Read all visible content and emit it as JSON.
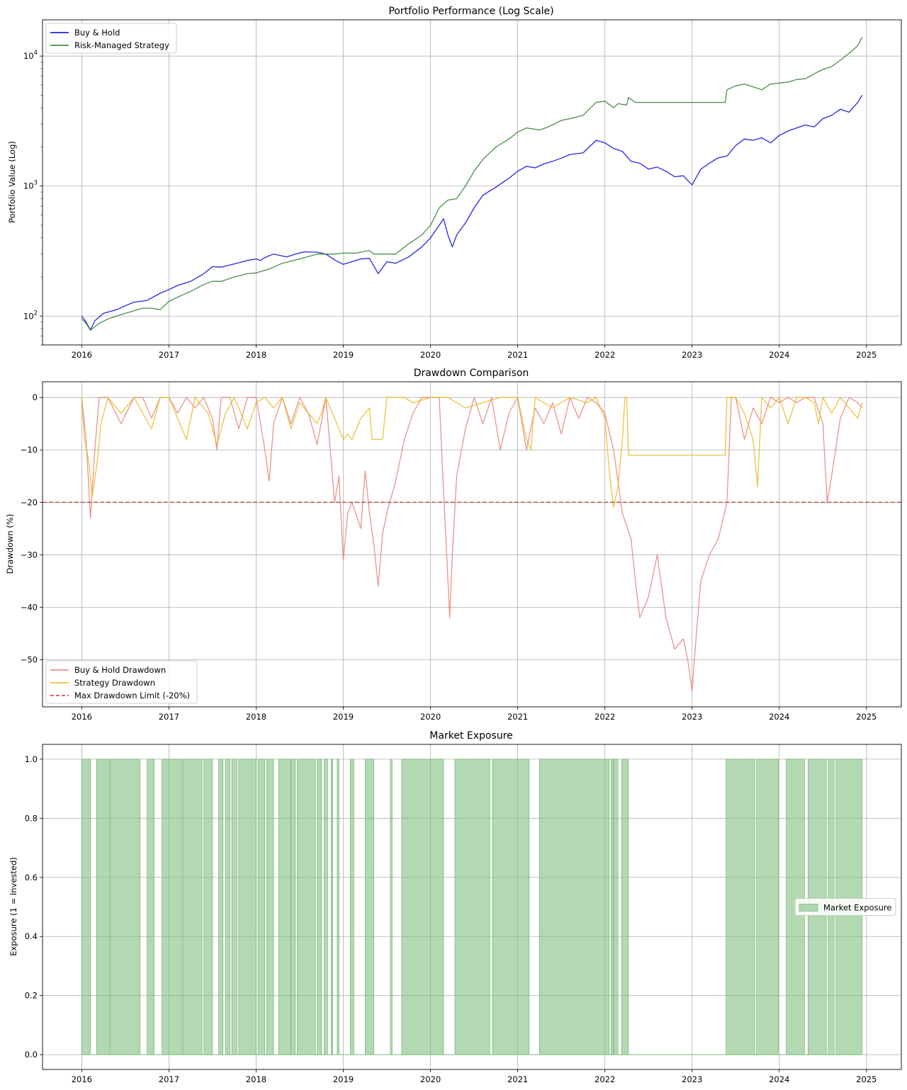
{
  "chart_data": [
    {
      "type": "line",
      "title": "Portfolio Performance (Log Scale)",
      "ylabel": "Portfolio Value (Log)",
      "xlabel": "",
      "yscale": "log",
      "xlim": [
        2015.55,
        2025.4
      ],
      "ylim": [
        60,
        19000
      ],
      "x_ticks": [
        "2016",
        "2017",
        "2018",
        "2019",
        "2020",
        "2021",
        "2022",
        "2023",
        "2024",
        "2025"
      ],
      "y_ticks": [
        "10^2",
        "10^3",
        "10^4"
      ],
      "grid": true,
      "legend_position": "upper-left",
      "series": [
        {
          "name": "Buy & Hold",
          "color": "#0000dd",
          "x": [
            2016.0,
            2016.05,
            2016.1,
            2016.15,
            2016.25,
            2016.4,
            2016.5,
            2016.6,
            2016.75,
            2016.9,
            2017.0,
            2017.1,
            2017.25,
            2017.4,
            2017.5,
            2017.6,
            2017.75,
            2017.9,
            2018.0,
            2018.05,
            2018.1,
            2018.2,
            2018.35,
            2018.45,
            2018.55,
            2018.7,
            2018.8,
            2018.9,
            2019.0,
            2019.1,
            2019.2,
            2019.3,
            2019.4,
            2019.5,
            2019.6,
            2019.75,
            2019.9,
            2020.0,
            2020.1,
            2020.15,
            2020.2,
            2020.25,
            2020.3,
            2020.4,
            2020.5,
            2020.6,
            2020.75,
            2020.9,
            2021.0,
            2021.1,
            2021.2,
            2021.3,
            2021.4,
            2021.5,
            2021.6,
            2021.75,
            2021.9,
            2022.0,
            2022.1,
            2022.2,
            2022.3,
            2022.4,
            2022.5,
            2022.6,
            2022.7,
            2022.8,
            2022.9,
            2023.0,
            2023.1,
            2023.2,
            2023.3,
            2023.4,
            2023.5,
            2023.6,
            2023.7,
            2023.8,
            2023.9,
            2024.0,
            2024.1,
            2024.2,
            2024.3,
            2024.4,
            2024.5,
            2024.6,
            2024.7,
            2024.8,
            2024.9,
            2024.95
          ],
          "y": [
            100,
            90,
            78,
            92,
            105,
            112,
            120,
            128,
            132,
            150,
            160,
            172,
            185,
            212,
            240,
            238,
            252,
            268,
            275,
            268,
            282,
            300,
            285,
            300,
            312,
            310,
            300,
            270,
            250,
            262,
            275,
            278,
            212,
            262,
            255,
            285,
            340,
            400,
            500,
            560,
            420,
            340,
            420,
            520,
            680,
            850,
            980,
            1150,
            1300,
            1420,
            1380,
            1480,
            1550,
            1640,
            1750,
            1800,
            2250,
            2150,
            1950,
            1850,
            1550,
            1500,
            1350,
            1400,
            1300,
            1180,
            1200,
            1020,
            1350,
            1500,
            1650,
            1700,
            2050,
            2300,
            2250,
            2350,
            2150,
            2450,
            2650,
            2800,
            2950,
            2850,
            3300,
            3500,
            3900,
            3700,
            4400,
            5000
          ]
        },
        {
          "name": "Risk-Managed Strategy",
          "color": "#2a7a2a",
          "x": [
            2016.0,
            2016.05,
            2016.1,
            2016.2,
            2016.3,
            2016.4,
            2016.5,
            2016.6,
            2016.7,
            2016.8,
            2016.9,
            2017.0,
            2017.1,
            2017.25,
            2017.4,
            2017.5,
            2017.6,
            2017.75,
            2017.9,
            2018.0,
            2018.15,
            2018.3,
            2018.5,
            2018.7,
            2018.9,
            2019.0,
            2019.15,
            2019.3,
            2019.35,
            2019.5,
            2019.6,
            2019.75,
            2019.9,
            2020.0,
            2020.1,
            2020.2,
            2020.3,
            2020.4,
            2020.5,
            2020.6,
            2020.75,
            2020.9,
            2021.0,
            2021.1,
            2021.25,
            2021.35,
            2021.5,
            2021.6,
            2021.75,
            2021.9,
            2022.0,
            2022.1,
            2022.15,
            2022.25,
            2022.27,
            2022.35,
            2023.0,
            2023.38,
            2023.4,
            2023.5,
            2023.6,
            2023.7,
            2023.8,
            2023.9,
            2024.0,
            2024.1,
            2024.2,
            2024.3,
            2024.4,
            2024.5,
            2024.6,
            2024.7,
            2024.8,
            2024.9,
            2024.95
          ],
          "y": [
            95,
            88,
            78,
            88,
            95,
            100,
            105,
            110,
            115,
            115,
            112,
            130,
            140,
            155,
            175,
            185,
            185,
            200,
            212,
            215,
            230,
            255,
            275,
            300,
            300,
            305,
            305,
            320,
            300,
            300,
            300,
            360,
            420,
            500,
            680,
            780,
            800,
            1000,
            1300,
            1600,
            2000,
            2300,
            2600,
            2800,
            2700,
            2850,
            3200,
            3300,
            3500,
            4400,
            4500,
            4000,
            4300,
            4200,
            4800,
            4400,
            4400,
            4400,
            5500,
            5900,
            6100,
            5800,
            5500,
            6100,
            6200,
            6300,
            6600,
            6700,
            7300,
            7900,
            8300,
            9300,
            10500,
            12000,
            14000
          ]
        }
      ]
    },
    {
      "type": "line",
      "title": "Drawdown Comparison",
      "ylabel": "Drawdown (%)",
      "xlabel": "",
      "xlim": [
        2015.55,
        2025.4
      ],
      "ylim": [
        -59,
        3
      ],
      "x_ticks": [
        "2016",
        "2017",
        "2018",
        "2019",
        "2020",
        "2021",
        "2022",
        "2023",
        "2024",
        "2025"
      ],
      "y_ticks": [
        "0",
        "−10",
        "−20",
        "−30",
        "−40",
        "−50"
      ],
      "grid": true,
      "legend_position": "lower-left",
      "series": [
        {
          "name": "Buy & Hold Drawdown",
          "color": "#e8807a",
          "x": [
            2016.0,
            2016.05,
            2016.1,
            2016.15,
            2016.2,
            2016.3,
            2016.45,
            2016.6,
            2016.7,
            2016.8,
            2016.9,
            2017.0,
            2017.1,
            2017.2,
            2017.3,
            2017.4,
            2017.5,
            2017.55,
            2017.6,
            2017.7,
            2017.8,
            2017.9,
            2018.0,
            2018.1,
            2018.15,
            2018.2,
            2018.3,
            2018.4,
            2018.5,
            2018.6,
            2018.7,
            2018.8,
            2018.85,
            2018.9,
            2018.95,
            2019.0,
            2019.05,
            2019.1,
            2019.2,
            2019.25,
            2019.3,
            2019.35,
            2019.4,
            2019.45,
            2019.5,
            2019.6,
            2019.7,
            2019.8,
            2019.9,
            2020.0,
            2020.1,
            2020.15,
            2020.2,
            2020.22,
            2020.25,
            2020.3,
            2020.4,
            2020.5,
            2020.6,
            2020.7,
            2020.8,
            2020.9,
            2021.0,
            2021.1,
            2021.2,
            2021.3,
            2021.4,
            2021.5,
            2021.6,
            2021.7,
            2021.8,
            2021.9,
            2022.0,
            2022.1,
            2022.2,
            2022.3,
            2022.35,
            2022.4,
            2022.5,
            2022.6,
            2022.7,
            2022.8,
            2022.9,
            2022.95,
            2023.0,
            2023.05,
            2023.1,
            2023.2,
            2023.3,
            2023.4,
            2023.45,
            2023.5,
            2023.6,
            2023.7,
            2023.8,
            2023.9,
            2024.0,
            2024.1,
            2024.2,
            2024.3,
            2024.4,
            2024.5,
            2024.55,
            2024.6,
            2024.7,
            2024.8,
            2024.9,
            2024.95
          ],
          "y": [
            0,
            -8,
            -23,
            -10,
            0,
            0,
            -5,
            0,
            0,
            -4,
            0,
            0,
            -3,
            0,
            -2,
            0,
            -4,
            -10,
            0,
            0,
            -6,
            0,
            0,
            -10,
            -16,
            -5,
            0,
            -5,
            0,
            -3,
            -9,
            0,
            -10,
            -20,
            -15,
            -31,
            -22,
            -20,
            -25,
            -14,
            -22,
            -28,
            -36,
            -26,
            -22,
            -16,
            -8,
            -3,
            0,
            0,
            0,
            -18,
            -35,
            -42,
            -30,
            -15,
            -6,
            0,
            -5,
            0,
            -10,
            -3,
            0,
            -10,
            -2,
            -5,
            -1,
            -7,
            0,
            -4,
            0,
            -1,
            -3,
            -10,
            -22,
            -27,
            -35,
            -42,
            -38,
            -30,
            -42,
            -48,
            -46,
            -50,
            -56,
            -45,
            -35,
            -30,
            -27,
            -20,
            0,
            0,
            -8,
            -2,
            -5,
            0,
            -1,
            0,
            -1,
            0,
            0,
            -5,
            -20,
            -15,
            -4,
            0,
            -1,
            -2
          ]
        },
        {
          "name": "Strategy Drawdown",
          "color": "#e8b820",
          "x": [
            2016.0,
            2016.03,
            2016.08,
            2016.12,
            2016.18,
            2016.22,
            2016.3,
            2016.45,
            2016.6,
            2016.8,
            2016.9,
            2017.0,
            2017.1,
            2017.2,
            2017.3,
            2017.45,
            2017.55,
            2017.65,
            2017.75,
            2017.9,
            2018.0,
            2018.1,
            2018.2,
            2018.3,
            2018.4,
            2018.5,
            2018.6,
            2018.7,
            2018.75,
            2018.8,
            2019.0,
            2019.05,
            2019.1,
            2019.2,
            2019.25,
            2019.3,
            2019.33,
            2019.4,
            2019.45,
            2019.5,
            2019.55,
            2019.6,
            2019.7,
            2019.8,
            2020.0,
            2020.2,
            2020.4,
            2020.6,
            2020.8,
            2021.0,
            2021.1,
            2021.15,
            2021.2,
            2021.4,
            2021.6,
            2021.8,
            2021.9,
            2022.0,
            2022.05,
            2022.1,
            2022.15,
            2022.2,
            2022.23,
            2022.25,
            2022.27,
            2022.28,
            2022.3,
            2023.38,
            2023.4,
            2023.5,
            2023.6,
            2023.7,
            2023.75,
            2023.8,
            2023.9,
            2024.0,
            2024.1,
            2024.2,
            2024.3,
            2024.4,
            2024.45,
            2024.5,
            2024.6,
            2024.7,
            2024.8,
            2024.9,
            2024.95
          ],
          "y": [
            0,
            -8,
            -12,
            -19,
            -12,
            -5,
            0,
            -3,
            0,
            -6,
            0,
            0,
            -4,
            -8,
            0,
            -3,
            -9,
            -3,
            0,
            -6,
            -1,
            0,
            -2,
            0,
            -6,
            -1,
            -3,
            -5,
            -3,
            0,
            -8,
            -7,
            -8,
            -4,
            -3,
            -2,
            -8,
            -8,
            -8,
            0,
            0,
            0,
            0,
            -1,
            0,
            0,
            -2,
            -1,
            0,
            0,
            -8,
            -10,
            0,
            -2,
            0,
            -1,
            0,
            -4,
            -14,
            -21,
            -17,
            -8,
            0,
            0,
            -11,
            -11,
            -11,
            -11,
            0,
            0,
            -3,
            -8,
            -17,
            0,
            -2,
            0,
            -5,
            0,
            0,
            -1,
            -5,
            0,
            -3,
            0,
            -2,
            -4,
            -1
          ]
        }
      ],
      "reference_line": {
        "name": "Max Drawdown Limit (-20%)",
        "y": -20,
        "color": "#c0392b",
        "style": "dashed"
      }
    },
    {
      "type": "area",
      "title": "Market Exposure",
      "ylabel": "Exposure (1 = Invested)",
      "xlabel": "",
      "xlim": [
        2015.55,
        2025.4
      ],
      "ylim": [
        -0.05,
        1.05
      ],
      "x_ticks": [
        "2016",
        "2017",
        "2018",
        "2019",
        "2020",
        "2021",
        "2022",
        "2023",
        "2024",
        "2025"
      ],
      "y_ticks": [
        "0.0",
        "0.2",
        "0.4",
        "0.6",
        "0.8",
        "1.0"
      ],
      "grid": true,
      "legend_position": "center-right",
      "series": [
        {
          "name": "Market Exposure",
          "color": "#7fbf7f",
          "invested_intervals": [
            [
              2016.0,
              2016.1
            ],
            [
              2016.17,
              2016.32
            ],
            [
              2016.33,
              2016.67
            ],
            [
              2016.75,
              2016.83
            ],
            [
              2016.92,
              2017.15
            ],
            [
              2017.16,
              2017.38
            ],
            [
              2017.4,
              2017.5
            ],
            [
              2017.57,
              2017.62
            ],
            [
              2017.65,
              2017.7
            ],
            [
              2017.72,
              2017.78
            ],
            [
              2017.8,
              2018.0
            ],
            [
              2018.02,
              2018.1
            ],
            [
              2018.12,
              2018.2
            ],
            [
              2018.26,
              2018.4
            ],
            [
              2018.4,
              2018.45
            ],
            [
              2018.47,
              2018.68
            ],
            [
              2018.7,
              2018.75
            ],
            [
              2018.78,
              2018.82
            ],
            [
              2018.86,
              2018.88
            ],
            [
              2018.93,
              2018.95
            ],
            [
              2019.08,
              2019.12
            ],
            [
              2019.25,
              2019.35
            ],
            [
              2019.54,
              2019.56
            ],
            [
              2019.67,
              2020.15
            ],
            [
              2020.28,
              2020.68
            ],
            [
              2020.71,
              2021.13
            ],
            [
              2021.25,
              2022.05
            ],
            [
              2022.07,
              2022.1
            ],
            [
              2022.1,
              2022.15
            ],
            [
              2022.19,
              2022.27
            ],
            [
              2023.39,
              2023.72
            ],
            [
              2023.74,
              2023.99
            ],
            [
              2024.08,
              2024.29
            ],
            [
              2024.33,
              2024.54
            ],
            [
              2024.56,
              2024.63
            ],
            [
              2024.65,
              2024.95
            ]
          ],
          "values": [
            1,
            0
          ]
        }
      ]
    }
  ]
}
